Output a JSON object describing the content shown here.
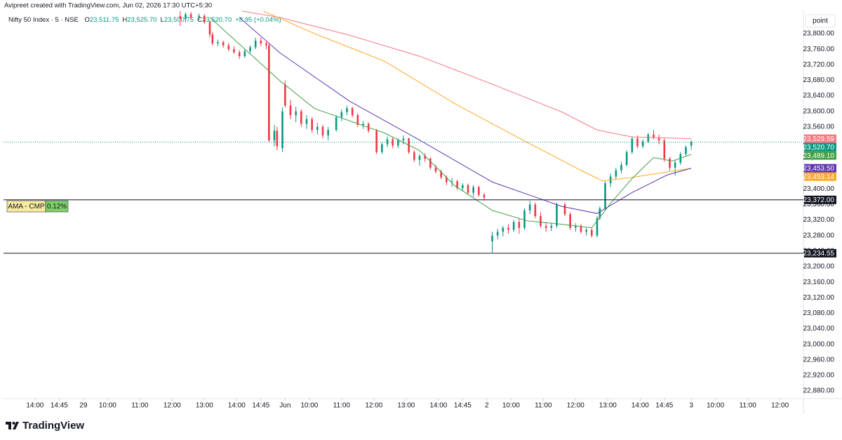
{
  "header": {
    "credit": "Avipreet created with TradingView.com, Jun 02, 2026 17:30 UTC+5:30",
    "symbol": "Nifty 50 Index · 5 · NSE",
    "ohlc": [
      {
        "key": "O",
        "value": "23,511.75"
      },
      {
        "key": "H",
        "value": "23,525.70"
      },
      {
        "key": "L",
        "value": "23,500.75"
      },
      {
        "key": "C",
        "value": "23,520.70"
      }
    ],
    "change": "+8.95 (+0.04%)"
  },
  "toolbar": {
    "scale_button": "point"
  },
  "logo": {
    "text": "TradingView"
  },
  "annotation": {
    "label": "AMA - CMP",
    "value": "0.12%"
  },
  "chart_data": {
    "type": "candlestick",
    "xlim": [
      -11.7,
      285.7
    ],
    "ylim": [
      22860,
      23860
    ],
    "grid": false,
    "xticks": [
      {
        "value": 0,
        "label": "14:00"
      },
      {
        "value": 9,
        "label": "14:45"
      },
      {
        "value": 18,
        "label": "29"
      },
      {
        "value": 27,
        "label": "10:00"
      },
      {
        "value": 39,
        "label": "11:00"
      },
      {
        "value": 51,
        "label": "12:00"
      },
      {
        "value": 63,
        "label": "13:00"
      },
      {
        "value": 75,
        "label": "14:00"
      },
      {
        "value": 84,
        "label": "14:45"
      },
      {
        "value": 93,
        "label": "Jun"
      },
      {
        "value": 102,
        "label": "10:00"
      },
      {
        "value": 114,
        "label": "11:00"
      },
      {
        "value": 126,
        "label": "12:00"
      },
      {
        "value": 138,
        "label": "13:00"
      },
      {
        "value": 150,
        "label": "14:00"
      },
      {
        "value": 159,
        "label": "14:45"
      },
      {
        "value": 168,
        "label": "2"
      },
      {
        "value": 177,
        "label": "10:00"
      },
      {
        "value": 189,
        "label": "11:00"
      },
      {
        "value": 201,
        "label": "12:00"
      },
      {
        "value": 213,
        "label": "13:00"
      },
      {
        "value": 225,
        "label": "14:00"
      },
      {
        "value": 234,
        "label": "14:45"
      },
      {
        "value": 244,
        "label": "3"
      },
      {
        "value": 253,
        "label": "10:00"
      },
      {
        "value": 265,
        "label": "11:00"
      },
      {
        "value": 277,
        "label": "12:00"
      }
    ],
    "yticks": [
      {
        "value": 23800,
        "label": "23,800.00"
      },
      {
        "value": 23760,
        "label": "23,760.00"
      },
      {
        "value": 23720,
        "label": "23,720.00"
      },
      {
        "value": 23680,
        "label": "23,680.00"
      },
      {
        "value": 23640,
        "label": "23,640.00"
      },
      {
        "value": 23600,
        "label": "23,600.00"
      },
      {
        "value": 23560,
        "label": "23,560.00"
      },
      {
        "value": 23520,
        "label": "23,520.00"
      },
      {
        "value": 23480,
        "label": "23,480.00"
      },
      {
        "value": 23440,
        "label": "23,440.00"
      },
      {
        "value": 23400,
        "label": "23,400.00"
      },
      {
        "value": 23360,
        "label": "23,360.00"
      },
      {
        "value": 23320,
        "label": "23,320.00"
      },
      {
        "value": 23280,
        "label": "23,280.00"
      },
      {
        "value": 23240,
        "label": "23,240.00"
      },
      {
        "value": 23200,
        "label": "23,200.00"
      },
      {
        "value": 23160,
        "label": "23,160.00"
      },
      {
        "value": 23120,
        "label": "23,120.00"
      },
      {
        "value": 23080,
        "label": "23,080.00"
      },
      {
        "value": 23040,
        "label": "23,040.00"
      },
      {
        "value": 23000,
        "label": "23,000.00"
      },
      {
        "value": 22960,
        "label": "22,960.00"
      },
      {
        "value": 22920,
        "label": "22,920.00"
      },
      {
        "value": 22880,
        "label": "22,880.00"
      }
    ],
    "candles": {
      "up_color": "#089981",
      "down_color": "#f23645",
      "last_label": "23,520.70",
      "x": [
        54,
        56,
        58,
        61,
        63,
        65,
        66,
        68,
        70,
        72,
        74,
        76,
        78,
        80,
        82,
        84,
        86,
        87,
        89,
        90,
        92,
        93,
        95,
        97,
        99,
        101,
        103,
        105,
        107,
        109,
        112,
        114,
        116,
        118,
        120,
        122,
        124,
        127,
        129,
        131,
        133,
        135,
        137,
        139,
        141,
        143,
        145,
        147,
        149,
        151,
        153,
        155,
        157,
        159,
        161,
        163,
        165,
        167,
        170,
        172,
        174,
        176,
        178,
        180,
        182,
        184,
        186,
        188,
        190,
        192,
        194,
        197,
        199,
        201,
        203,
        205,
        207,
        209,
        210,
        212,
        214,
        216,
        218,
        220,
        222,
        224,
        226,
        228,
        230,
        232,
        234,
        236,
        238,
        240,
        242,
        244
      ],
      "open": [
        23845,
        23838,
        23850,
        23842,
        23846,
        23830,
        23798,
        23775,
        23778,
        23770,
        23760,
        23752,
        23742,
        23755,
        23765,
        23782,
        23775,
        23770,
        23525,
        23550,
        23505,
        23668,
        23615,
        23590,
        23600,
        23568,
        23580,
        23552,
        23560,
        23538,
        23552,
        23585,
        23598,
        23608,
        23590,
        23565,
        23568,
        23550,
        23495,
        23515,
        23528,
        23512,
        23525,
        23530,
        23495,
        23475,
        23485,
        23478,
        23455,
        23445,
        23430,
        23418,
        23420,
        23402,
        23410,
        23390,
        23405,
        23385,
        23265,
        23280,
        23290,
        23300,
        23295,
        23315,
        23300,
        23345,
        23360,
        23330,
        23305,
        23300,
        23305,
        23360,
        23335,
        23300,
        23305,
        23290,
        23295,
        23280,
        23325,
        23350,
        23415,
        23432,
        23448,
        23462,
        23495,
        23530,
        23510,
        23522,
        23540,
        23532,
        23525,
        23478,
        23455,
        23468,
        23490,
        23511.75
      ],
      "high": [
        23858,
        23855,
        23856,
        23852,
        23850,
        23834,
        23805,
        23785,
        23782,
        23776,
        23768,
        23758,
        23760,
        23770,
        23790,
        23790,
        23780,
        23775,
        23565,
        23560,
        23610,
        23680,
        23630,
        23612,
        23605,
        23590,
        23585,
        23570,
        23565,
        23560,
        23590,
        23605,
        23615,
        23612,
        23595,
        23575,
        23572,
        23555,
        23520,
        23535,
        23532,
        23530,
        23538,
        23532,
        23500,
        23490,
        23492,
        23482,
        23462,
        23450,
        23435,
        23428,
        23424,
        23415,
        23414,
        23410,
        23408,
        23390,
        23290,
        23298,
        23305,
        23310,
        23320,
        23325,
        23350,
        23370,
        23365,
        23340,
        23315,
        23312,
        23365,
        23365,
        23340,
        23312,
        23310,
        23300,
        23298,
        23330,
        23355,
        23420,
        23440,
        23455,
        23470,
        23500,
        23535,
        23538,
        23528,
        23545,
        23552,
        23540,
        23530,
        23482,
        23475,
        23495,
        23512,
        23525.7
      ],
      "low": [
        23820,
        23830,
        23836,
        23835,
        23825,
        23790,
        23770,
        23768,
        23764,
        23755,
        23748,
        23735,
        23738,
        23750,
        23760,
        23768,
        23760,
        23520,
        23510,
        23500,
        23495,
        23610,
        23580,
        23572,
        23560,
        23555,
        23545,
        23540,
        23530,
        23525,
        23548,
        23575,
        23590,
        23585,
        23560,
        23555,
        23545,
        23490,
        23490,
        23508,
        23505,
        23505,
        23515,
        23490,
        23470,
        23460,
        23470,
        23450,
        23440,
        23425,
        23410,
        23405,
        23398,
        23395,
        23385,
        23380,
        23380,
        23370,
        23236,
        23270,
        23278,
        23285,
        23290,
        23285,
        23295,
        23335,
        23325,
        23300,
        23290,
        23292,
        23300,
        23330,
        23295,
        23290,
        23285,
        23280,
        23275,
        23275,
        23320,
        23345,
        23405,
        23425,
        23440,
        23458,
        23490,
        23505,
        23505,
        23518,
        23528,
        23515,
        23470,
        23448,
        23435,
        23462,
        23486,
        23500.75
      ],
      "close": [
        23838,
        23850,
        23842,
        23846,
        23830,
        23798,
        23775,
        23778,
        23770,
        23760,
        23752,
        23742,
        23755,
        23765,
        23782,
        23775,
        23770,
        23525,
        23550,
        23510,
        23600,
        23615,
        23590,
        23600,
        23568,
        23580,
        23552,
        23560,
        23538,
        23552,
        23585,
        23598,
        23608,
        23590,
        23565,
        23568,
        23550,
        23495,
        23515,
        23528,
        23512,
        23525,
        23530,
        23495,
        23475,
        23485,
        23478,
        23455,
        23445,
        23430,
        23418,
        23420,
        23402,
        23410,
        23390,
        23405,
        23385,
        23378,
        23280,
        23290,
        23300,
        23295,
        23315,
        23300,
        23345,
        23360,
        23330,
        23305,
        23300,
        23305,
        23360,
        23335,
        23300,
        23305,
        23290,
        23295,
        23280,
        23325,
        23350,
        23415,
        23432,
        23448,
        23462,
        23495,
        23530,
        23510,
        23522,
        23540,
        23532,
        23525,
        23478,
        23455,
        23468,
        23490,
        23508,
        23520.7
      ]
    },
    "lines": [
      {
        "color": "#f7787f",
        "width": 1,
        "last_label": "23,529.59",
        "x": [
          77,
          91,
          117,
          143,
          170,
          196,
          209,
          222,
          244
        ],
        "values": [
          23858,
          23842,
          23796,
          23742,
          23670,
          23598,
          23552,
          23534,
          23529.59
        ]
      },
      {
        "color": "#ffa726",
        "width": 1,
        "last_label": "23,453.14",
        "x": [
          85,
          104,
          130,
          156,
          183,
          203,
          211,
          222,
          235,
          244
        ],
        "values": [
          23858,
          23800,
          23729,
          23620,
          23520,
          23448,
          23421,
          23430,
          23444,
          23453.14
        ]
      },
      {
        "color": "#5e35b1",
        "width": 1,
        "last_label": "23,453.50",
        "x": [
          76,
          91,
          117,
          143,
          170,
          196,
          209,
          222,
          235,
          244
        ],
        "values": [
          23842,
          23751,
          23626,
          23526,
          23418,
          23355,
          23337,
          23391,
          23436,
          23453.5
        ]
      },
      {
        "color": "#43a047",
        "width": 1,
        "last_label": "23,489.10",
        "x": [
          65,
          91,
          104,
          130,
          143,
          156,
          170,
          183,
          196,
          207,
          214,
          222,
          230,
          237,
          244
        ],
        "values": [
          23842,
          23679,
          23607,
          23544,
          23499,
          23409,
          23345,
          23318,
          23309,
          23300,
          23363,
          23427,
          23481,
          23472,
          23489.1
        ]
      }
    ],
    "levels": [
      {
        "value": 23372,
        "label": "23,372.00",
        "color": "#131722"
      },
      {
        "value": 23234.55,
        "label": "23,234.55",
        "color": "#131722"
      }
    ]
  }
}
